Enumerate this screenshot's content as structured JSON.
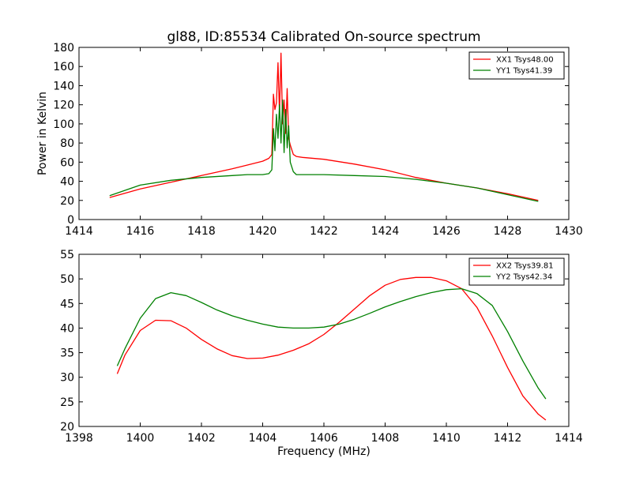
{
  "figure": {
    "title": "gl88, ID:85534 Calibrated On-source spectrum"
  },
  "chart_data": [
    {
      "type": "line",
      "title": "gl88, ID:85534 Calibrated On-source spectrum",
      "xlabel": "",
      "ylabel": "Power in Kelvin",
      "xlim": [
        1414,
        1430
      ],
      "ylim": [
        0,
        180
      ],
      "xticks": [
        1414,
        1416,
        1418,
        1420,
        1422,
        1424,
        1426,
        1428,
        1430
      ],
      "yticks": [
        0,
        20,
        40,
        60,
        80,
        100,
        120,
        140,
        160,
        180
      ],
      "grid": false,
      "legend_position": "top-right",
      "series": [
        {
          "name": "XX1 Tsys48.00",
          "color": "#ff0000",
          "x": [
            1415,
            1416,
            1417,
            1418,
            1419,
            1419.5,
            1420,
            1420.2,
            1420.3,
            1420.35,
            1420.4,
            1420.45,
            1420.5,
            1420.55,
            1420.6,
            1420.65,
            1420.7,
            1420.75,
            1420.8,
            1420.85,
            1420.9,
            1421,
            1421.1,
            1421.3,
            1422,
            1423,
            1424,
            1425,
            1426,
            1427,
            1428,
            1429
          ],
          "y": [
            23,
            32,
            39,
            46,
            53,
            57,
            61,
            64,
            68,
            131,
            115,
            122,
            164,
            110,
            174,
            100,
            125,
            90,
            137,
            85,
            78,
            68,
            66,
            65,
            63,
            58,
            52,
            44,
            38,
            33,
            27,
            20
          ]
        },
        {
          "name": "YY1 Tsys41.39",
          "color": "#008000",
          "x": [
            1415,
            1416,
            1417,
            1418,
            1419,
            1419.5,
            1420,
            1420.2,
            1420.3,
            1420.35,
            1420.4,
            1420.45,
            1420.5,
            1420.55,
            1420.6,
            1420.65,
            1420.7,
            1420.75,
            1420.8,
            1420.85,
            1420.9,
            1421,
            1421.1,
            1421.3,
            1422,
            1423,
            1424,
            1425,
            1426,
            1427,
            1428,
            1429
          ],
          "y": [
            25,
            36,
            41,
            44,
            46,
            47,
            47,
            48,
            52,
            95,
            72,
            110,
            85,
            120,
            80,
            125,
            70,
            115,
            75,
            98,
            60,
            50,
            47,
            47,
            47,
            46,
            45,
            42,
            38,
            33,
            26,
            19
          ]
        }
      ]
    },
    {
      "type": "line",
      "title": "",
      "xlabel": "Frequency (MHz)",
      "ylabel": "",
      "xlim": [
        1398,
        1414
      ],
      "ylim": [
        20,
        55
      ],
      "xticks": [
        1398,
        1400,
        1402,
        1404,
        1406,
        1408,
        1410,
        1412,
        1414
      ],
      "yticks": [
        20,
        25,
        30,
        35,
        40,
        45,
        50,
        55
      ],
      "grid": false,
      "legend_position": "top-right",
      "series": [
        {
          "name": "XX2 Tsys39.81",
          "color": "#ff0000",
          "x": [
            1399.25,
            1399.5,
            1400,
            1400.5,
            1401,
            1401.5,
            1402,
            1402.5,
            1403,
            1403.5,
            1404,
            1404.5,
            1405,
            1405.5,
            1406,
            1406.5,
            1407,
            1407.5,
            1408,
            1408.5,
            1409,
            1409.5,
            1410,
            1410.5,
            1411,
            1411.5,
            1412,
            1412.5,
            1413,
            1413.25
          ],
          "y": [
            30.7,
            34.5,
            39.5,
            41.6,
            41.5,
            40.0,
            37.7,
            35.8,
            34.4,
            33.8,
            33.9,
            34.5,
            35.5,
            36.8,
            38.7,
            41.2,
            43.9,
            46.6,
            48.7,
            49.9,
            50.3,
            50.3,
            49.6,
            48.0,
            44.2,
            38.4,
            32.0,
            26.2,
            22.5,
            21.3
          ]
        },
        {
          "name": "YY2 Tsys42.34",
          "color": "#008000",
          "x": [
            1399.25,
            1399.5,
            1400,
            1400.5,
            1401,
            1401.5,
            1402,
            1402.5,
            1403,
            1403.5,
            1404,
            1404.5,
            1405,
            1405.5,
            1406,
            1406.5,
            1407,
            1407.5,
            1408,
            1408.5,
            1409,
            1409.5,
            1410,
            1410.5,
            1411,
            1411.5,
            1412,
            1412.5,
            1413,
            1413.25
          ],
          "y": [
            32.3,
            35.8,
            42.0,
            46.0,
            47.2,
            46.6,
            45.2,
            43.7,
            42.5,
            41.6,
            40.8,
            40.2,
            40.0,
            40.0,
            40.2,
            40.8,
            41.8,
            43.0,
            44.3,
            45.4,
            46.4,
            47.2,
            47.8,
            48.0,
            47.0,
            44.6,
            39.3,
            33.3,
            27.8,
            25.6
          ]
        }
      ]
    }
  ]
}
